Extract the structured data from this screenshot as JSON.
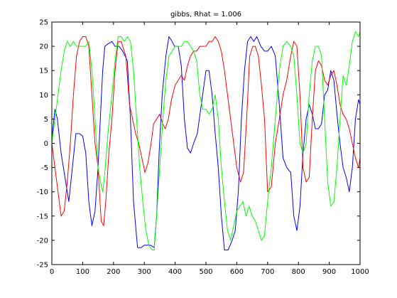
{
  "chart_data": {
    "type": "line",
    "title": "gibbs, Rhat = 1.006",
    "xlabel": "",
    "ylabel": "",
    "xlim": [
      0,
      1000
    ],
    "ylim": [
      -25,
      25
    ],
    "x_ticks": [
      0,
      100,
      200,
      300,
      400,
      500,
      600,
      700,
      800,
      900,
      1000
    ],
    "y_ticks": [
      -25,
      -20,
      -15,
      -10,
      -5,
      0,
      5,
      10,
      15,
      20,
      25
    ],
    "grid": false,
    "legend": "none",
    "series": [
      {
        "color": "#0000ff",
        "x": [
          0,
          10,
          18,
          30,
          45,
          55,
          65,
          78,
          90,
          100,
          110,
          120,
          130,
          140,
          150,
          158,
          165,
          172,
          182,
          195,
          205,
          218,
          230,
          245,
          255,
          265,
          278,
          290,
          300,
          310,
          320,
          332,
          340,
          348,
          358,
          370,
          380,
          390,
          398,
          410,
          420,
          430,
          440,
          450,
          460,
          472,
          485,
          500,
          510,
          520,
          530,
          540,
          550,
          560,
          572,
          585,
          595,
          605,
          615,
          625,
          635,
          645,
          655,
          665,
          678,
          690,
          700,
          712,
          725,
          738,
          750,
          762,
          775,
          785,
          795,
          805,
          815,
          825,
          835,
          845,
          855,
          865,
          875,
          885,
          895,
          905,
          915,
          925,
          935,
          945,
          955,
          965,
          975,
          985,
          995,
          1000
        ],
        "y": [
          1,
          7,
          5,
          -2,
          -8,
          -12,
          -6,
          2,
          2,
          1.5,
          -2,
          -12,
          -17,
          -14,
          -5,
          6,
          15,
          20,
          20.5,
          21,
          20,
          20,
          19,
          17,
          5,
          -12,
          -21.5,
          -21.5,
          -21,
          -21,
          -21,
          -21.5,
          -15,
          -2,
          10,
          18,
          22,
          21,
          20,
          20,
          16,
          5,
          -1,
          -2,
          0,
          2,
          8,
          15,
          15,
          10,
          2,
          -5,
          -15,
          -22,
          -22,
          -20,
          -18,
          -10,
          5,
          15,
          21,
          22,
          21,
          22,
          20,
          19,
          19,
          20,
          18,
          8,
          -3,
          -5,
          -6,
          -15,
          -18,
          -13,
          -2,
          5,
          8,
          6,
          3,
          3,
          4,
          10,
          11,
          15,
          13,
          6,
          0,
          -5,
          -7,
          -10,
          -5,
          5,
          9,
          8
        ]
      },
      {
        "color": "#ff0000",
        "x": [
          0,
          10,
          20,
          30,
          40,
          50,
          60,
          70,
          80,
          90,
          100,
          110,
          120,
          130,
          140,
          150,
          160,
          168,
          175,
          185,
          195,
          205,
          215,
          225,
          240,
          252,
          262,
          272,
          282,
          292,
          302,
          312,
          322,
          330,
          340,
          350,
          360,
          368,
          378,
          388,
          400,
          410,
          420,
          430,
          440,
          450,
          460,
          470,
          480,
          490,
          500,
          510,
          520,
          530,
          540,
          550,
          560,
          570,
          580,
          590,
          600,
          612,
          622,
          632,
          642,
          652,
          660,
          670,
          680,
          690,
          700,
          712,
          725,
          738,
          750,
          762,
          775,
          785,
          795,
          805,
          815,
          825,
          835,
          845,
          855,
          865,
          875,
          885,
          895,
          905,
          915,
          925,
          935,
          945,
          955,
          965,
          975,
          985,
          995,
          1000
        ],
        "y": [
          0,
          -5,
          -10,
          -15,
          -14,
          -8,
          0,
          10,
          18,
          21,
          22,
          22,
          20,
          10,
          0,
          -5,
          -16,
          -17,
          -12,
          -2,
          5,
          15,
          21,
          21,
          18,
          8,
          5,
          2,
          0,
          -3,
          -6,
          -4,
          0,
          4,
          5,
          6,
          4,
          3,
          5,
          9,
          12,
          13,
          14,
          13,
          16,
          18,
          19,
          19,
          20,
          20,
          20,
          21,
          21,
          22,
          21,
          19,
          15,
          10,
          5,
          0,
          -5,
          -8,
          -6,
          5,
          18,
          20,
          20,
          18,
          12,
          5,
          -10,
          -9,
          0,
          5,
          10,
          13,
          18,
          21,
          20,
          10,
          -5,
          -8,
          -7,
          5,
          15,
          17,
          16,
          13,
          12,
          14,
          15,
          12,
          8,
          6,
          5,
          3,
          0,
          -3,
          -5,
          -3
        ]
      },
      {
        "color": "#00ff00",
        "x": [
          0,
          10,
          20,
          30,
          40,
          50,
          60,
          70,
          80,
          90,
          100,
          110,
          120,
          130,
          140,
          150,
          158,
          165,
          172,
          182,
          195,
          205,
          215,
          225,
          235,
          245,
          255,
          265,
          275,
          285,
          295,
          305,
          315,
          325,
          332,
          340,
          350,
          360,
          370,
          380,
          390,
          400,
          410,
          420,
          430,
          440,
          450,
          460,
          470,
          480,
          490,
          500,
          510,
          520,
          530,
          540,
          550,
          560,
          570,
          580,
          590,
          600,
          610,
          620,
          630,
          640,
          650,
          660,
          670,
          680,
          690,
          700,
          712,
          725,
          738,
          750,
          762,
          775,
          785,
          795,
          805,
          815,
          825,
          835,
          845,
          855,
          865,
          875,
          885,
          895,
          905,
          915,
          925,
          935,
          945,
          955,
          965,
          975,
          985,
          995,
          1000
        ],
        "y": [
          0,
          5,
          10,
          15,
          19,
          21,
          20,
          21,
          20,
          20,
          20,
          20,
          21,
          15,
          5,
          -5,
          -8,
          -10,
          -6,
          2,
          10,
          17,
          22,
          22,
          21,
          22,
          21,
          15,
          5,
          -5,
          -12,
          -18,
          -21,
          -22,
          -22,
          -15,
          -5,
          5,
          13,
          18,
          19,
          20,
          20,
          20,
          21,
          21,
          20,
          19,
          17,
          10,
          7,
          7,
          6,
          7,
          10,
          5,
          -5,
          -12,
          -18,
          -20,
          -17,
          -14,
          -13,
          -12,
          -15,
          -13,
          -15,
          -16,
          -18,
          -20,
          -19,
          -12,
          -5,
          5,
          15,
          20,
          21,
          20,
          18,
          10,
          0,
          -2,
          0,
          10,
          17,
          20,
          20,
          18,
          5,
          -8,
          -13,
          -12,
          -5,
          5,
          14,
          12,
          16,
          21,
          23,
          22,
          23
        ]
      }
    ]
  }
}
